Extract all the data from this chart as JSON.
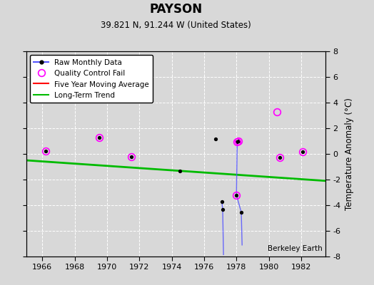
{
  "title": "PAYSON",
  "subtitle": "39.821 N, 91.244 W (United States)",
  "watermark": "Berkeley Earth",
  "xlim": [
    1965.0,
    1983.5
  ],
  "ylim": [
    -8,
    8
  ],
  "yticks": [
    -8,
    -6,
    -4,
    -2,
    0,
    2,
    4,
    6,
    8
  ],
  "xticks": [
    1966,
    1968,
    1970,
    1972,
    1974,
    1976,
    1978,
    1980,
    1982
  ],
  "ylabel": "Temperature Anomaly (°C)",
  "background_color": "#d8d8d8",
  "plot_bg_color": "#d8d8d8",
  "raw_dots_x": [
    1966.2,
    1969.5,
    1974.5,
    1976.7,
    1977.1,
    1977.15,
    1978.0,
    1978.05,
    1978.1,
    1978.3,
    1980.7,
    1982.1
  ],
  "raw_dots_y": [
    0.2,
    1.3,
    -1.35,
    1.15,
    -3.7,
    -4.35,
    -3.2,
    0.95,
    1.0,
    -4.55,
    -0.25,
    0.15
  ],
  "qc_only_x": [
    1971.5
  ],
  "qc_only_y": [
    -0.2
  ],
  "line_segs": [
    {
      "x": [
        1977.1,
        1977.15
      ],
      "y": [
        -3.7,
        -4.35
      ]
    },
    {
      "x": [
        1977.15,
        1977.2
      ],
      "y": [
        -4.35,
        -7.85
      ]
    },
    {
      "x": [
        1978.0,
        1978.05,
        1978.1
      ],
      "y": [
        -3.2,
        0.95,
        1.0
      ]
    },
    {
      "x": [
        1978.0,
        1978.3
      ],
      "y": [
        -3.2,
        -4.55
      ]
    },
    {
      "x": [
        1978.3,
        1978.35
      ],
      "y": [
        -4.55,
        -7.1
      ]
    }
  ],
  "qc_fail_x": [
    1966.2,
    1969.5,
    1971.5,
    1978.0,
    1978.05,
    1978.1,
    1980.7,
    1982.1
  ],
  "qc_fail_y": [
    0.2,
    1.3,
    -0.2,
    -3.2,
    0.95,
    1.0,
    -0.25,
    0.15
  ],
  "extra_qc_x": [
    1980.5
  ],
  "extra_qc_y": [
    3.3
  ],
  "trend_x": [
    1965.0,
    1983.5
  ],
  "trend_y": [
    -0.5,
    -2.1
  ],
  "raw_color": "#5555ff",
  "raw_dot_color": "#000000",
  "qc_color": "#ff00ff",
  "five_yr_color": "#ff0000",
  "trend_color": "#00bb00"
}
